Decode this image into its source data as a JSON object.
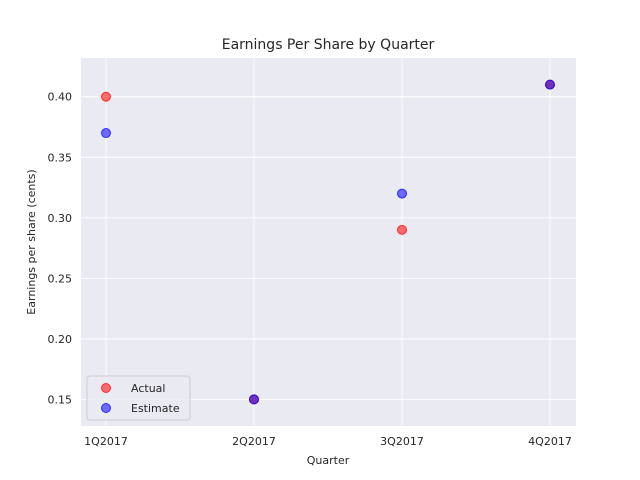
{
  "chart_data": {
    "type": "scatter",
    "title": "Earnings Per Share by Quarter",
    "xlabel": "Quarter",
    "ylabel": "Earnings per share (cents)",
    "categories": [
      "1Q2017",
      "2Q2017",
      "3Q2017",
      "4Q2017"
    ],
    "ylim": [
      0.128,
      0.432
    ],
    "yticks": [
      "0.15",
      "0.20",
      "0.25",
      "0.30",
      "0.35",
      "0.40"
    ],
    "grid": true,
    "legend_position": "lower-left",
    "series": [
      {
        "name": "Actual",
        "color": "#ff0000",
        "values": [
          0.4,
          0.15,
          0.29,
          0.41
        ]
      },
      {
        "name": "Estimate",
        "color": "#0000ff",
        "values": [
          0.37,
          0.15,
          0.32,
          0.41
        ]
      }
    ]
  }
}
